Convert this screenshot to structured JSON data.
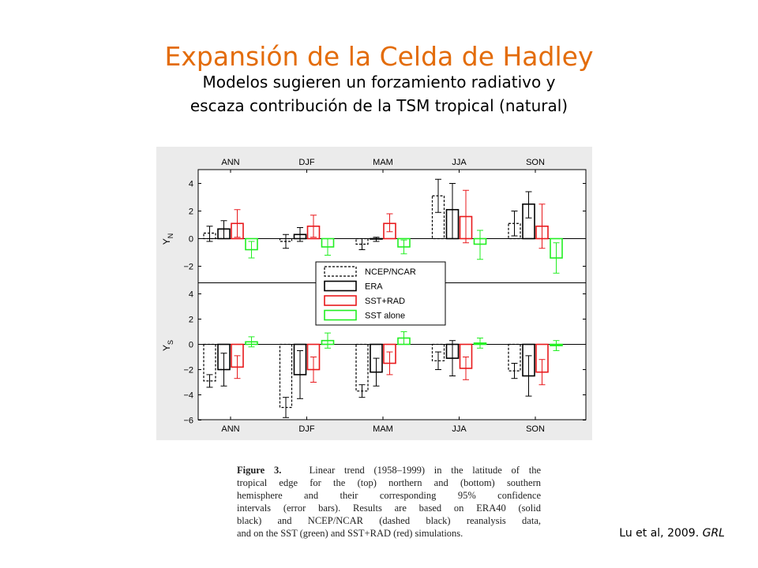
{
  "slide": {
    "title": "Expansión de la Celda de Hadley",
    "subtitle_line1": "Modelos sugieren un forzamiento radiativo y",
    "subtitle_line2": "escaza contribución de la TSM tropical (natural)",
    "citation_text": "Lu et al, 2009. ",
    "citation_journal": "GRL"
  },
  "caption": {
    "label": "Figure 3.",
    "lines": [
      "Linear trend (1958–1999) in the latitude of the",
      "tropical edge for the (top) northern and (bottom) southern",
      "hemisphere and their corresponding 95% confidence",
      "intervals (error bars). Results are based on ERA40 (solid",
      "black) and NCEP/NCAR (dashed black) reanalysis data,",
      "and on the SST (green) and SST+RAD (red) simulations."
    ]
  },
  "chart_data": [
    {
      "type": "bar",
      "panel": "top",
      "ylabel": "Y_N",
      "ylim": [
        -3.2,
        5
      ],
      "yticks": [
        -2,
        0,
        2,
        4
      ],
      "categories": [
        "ANN",
        "DJF",
        "MAM",
        "JJA",
        "SON"
      ],
      "series": [
        {
          "name": "NCEP/NCAR",
          "color": "#000000",
          "style": "dashed",
          "values": [
            0.4,
            -0.2,
            -0.4,
            3.1,
            1.1
          ],
          "err_low": [
            -0.2,
            -0.7,
            -0.8,
            1.9,
            0.2
          ],
          "err_high": [
            0.9,
            0.3,
            0.0,
            4.3,
            2.0
          ]
        },
        {
          "name": "ERA",
          "color": "#000000",
          "style": "solid",
          "values": [
            0.7,
            0.3,
            0.0,
            2.1,
            2.5
          ],
          "err_low": [
            0.0,
            -0.2,
            -0.2,
            0.0,
            1.5
          ],
          "err_high": [
            1.3,
            0.8,
            0.1,
            4.0,
            3.4
          ]
        },
        {
          "name": "SST+RAD",
          "color": "#e8191c",
          "style": "solid",
          "values": [
            1.1,
            0.9,
            1.1,
            1.6,
            0.9
          ],
          "err_low": [
            0.1,
            0.1,
            0.5,
            -0.3,
            -0.7
          ],
          "err_high": [
            2.1,
            1.7,
            1.8,
            3.5,
            2.5
          ]
        },
        {
          "name": "SST alone",
          "color": "#22ee22",
          "style": "solid",
          "values": [
            -0.8,
            -0.6,
            -0.6,
            -0.4,
            -1.4
          ],
          "err_low": [
            -1.4,
            -1.2,
            -1.1,
            -1.5,
            -2.5
          ],
          "err_high": [
            -0.2,
            0.0,
            -0.1,
            0.6,
            -0.3
          ]
        }
      ]
    },
    {
      "type": "bar",
      "panel": "bottom",
      "ylabel": "Y_S",
      "ylim": [
        -6.1,
        6
      ],
      "yticks": [
        -6,
        -4,
        -2,
        0,
        2,
        4
      ],
      "categories": [
        "ANN",
        "DJF",
        "MAM",
        "JJA",
        "SON"
      ],
      "series": [
        {
          "name": "NCEP/NCAR",
          "color": "#000000",
          "style": "dashed",
          "values": [
            -2.9,
            -5.0,
            -3.7,
            -1.3,
            -2.1
          ],
          "err_low": [
            -3.4,
            -5.8,
            -4.2,
            -2.0,
            -2.7
          ],
          "err_high": [
            -2.4,
            -4.2,
            -3.2,
            -0.6,
            -1.5
          ]
        },
        {
          "name": "ERA",
          "color": "#000000",
          "style": "solid",
          "values": [
            -2.0,
            -2.4,
            -2.2,
            -1.1,
            -2.5
          ],
          "err_low": [
            -3.3,
            -4.3,
            -3.3,
            -2.5,
            -4.1
          ],
          "err_high": [
            -0.7,
            -0.5,
            -1.1,
            0.3,
            -0.9
          ]
        },
        {
          "name": "SST+RAD",
          "color": "#e8191c",
          "style": "solid",
          "values": [
            -1.8,
            -2.0,
            -1.5,
            -1.9,
            -2.2
          ],
          "err_low": [
            -2.7,
            -3.0,
            -2.4,
            -2.8,
            -3.2
          ],
          "err_high": [
            -0.9,
            -1.0,
            -0.6,
            -1.0,
            -1.2
          ]
        },
        {
          "name": "SST alone",
          "color": "#22ee22",
          "style": "solid",
          "values": [
            0.2,
            0.3,
            0.5,
            0.1,
            -0.1
          ],
          "err_low": [
            -0.2,
            -0.3,
            0.0,
            -0.3,
            -0.5
          ],
          "err_high": [
            0.6,
            0.9,
            1.0,
            0.5,
            0.3
          ]
        }
      ]
    }
  ]
}
